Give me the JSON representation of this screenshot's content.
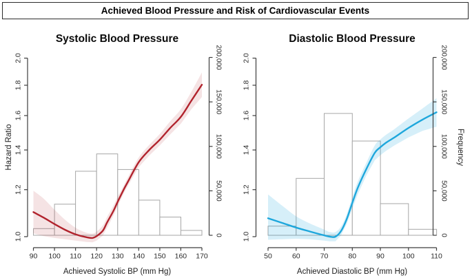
{
  "figure_title": "Achieved Blood Pressure and Risk of Cardiovascular Events",
  "colors": {
    "systolic_curve": "#B1232D",
    "systolic_band": "rgba(178,36,48,0.13)",
    "diastolic_curve": "#1EA7DC",
    "diastolic_band": "rgba(30,167,220,0.18)",
    "bar_fill": "#FFFFFF",
    "bar_stroke": "#A6A6A6",
    "axis": "#3C3C3C",
    "tick_text": "#2B2B2B"
  },
  "chart_data": [
    {
      "type": "line+histogram",
      "title": "Systolic Blood Pressure",
      "xlabel": "Achieved Systolic BP (mm Hg)",
      "ylabel_left": "Hazard Ratio",
      "ylabel_right": "",
      "grid": false,
      "legend": "none",
      "x_ticks": [
        90,
        100,
        110,
        120,
        130,
        140,
        150,
        160,
        170
      ],
      "xlim": [
        90,
        170
      ],
      "hr_axis": {
        "scale": "log",
        "lim": [
          1.0,
          2.0
        ],
        "tick_labels": [
          "1.0",
          "1.2",
          "1.4",
          "1.6",
          "1.8",
          "2.0"
        ]
      },
      "freq_axis": {
        "scale": "linear",
        "lim": [
          0,
          200000
        ],
        "tick_labels": [
          "0",
          "50,000",
          "100,000",
          "150,000",
          "200,000"
        ]
      },
      "histogram": {
        "bin_start": 90,
        "bin_width": 10,
        "frequencies": [
          7500,
          35000,
          72000,
          91500,
          74000,
          39500,
          20500,
          5500
        ]
      },
      "curve": {
        "color": "#B1232D",
        "band_color": "rgba(178,36,48,0.13)",
        "x": [
          90,
          95,
          100,
          105,
          110,
          115,
          118,
          120,
          123,
          125,
          128,
          130,
          133,
          135,
          140,
          145,
          150,
          155,
          160,
          165,
          170
        ],
        "hr": [
          1.1,
          1.076,
          1.05,
          1.027,
          1.009,
          0.998,
          0.995,
          1.002,
          1.024,
          1.057,
          1.105,
          1.145,
          1.203,
          1.24,
          1.335,
          1.4,
          1.457,
          1.526,
          1.592,
          1.695,
          1.804
        ],
        "band_lower": [
          1.013,
          1.002,
          0.995,
          0.99,
          0.985,
          0.98,
          0.978,
          0.985,
          1.005,
          1.035,
          1.085,
          1.125,
          1.185,
          1.22,
          1.31,
          1.37,
          1.425,
          1.488,
          1.55,
          1.64,
          1.72
        ],
        "band_upper": [
          1.195,
          1.158,
          1.11,
          1.068,
          1.035,
          1.016,
          1.012,
          1.02,
          1.045,
          1.08,
          1.128,
          1.168,
          1.222,
          1.262,
          1.36,
          1.428,
          1.49,
          1.566,
          1.64,
          1.755,
          1.892
        ]
      }
    },
    {
      "type": "line+histogram",
      "title": "Diastolic Blood Pressure",
      "xlabel": "Achieved Diastolic BP (mm Hg)",
      "ylabel_left": "",
      "ylabel_right": "Frequency",
      "grid": false,
      "legend": "none",
      "x_ticks": [
        50,
        60,
        70,
        80,
        90,
        100,
        110
      ],
      "xlim": [
        50,
        110
      ],
      "hr_axis": {
        "scale": "log",
        "lim": [
          1.0,
          2.0
        ],
        "tick_labels": [
          "1.0",
          "1.2",
          "1.4",
          "1.6",
          "1.8",
          "2.0"
        ]
      },
      "freq_axis": {
        "scale": "linear",
        "lim": [
          0,
          200000
        ],
        "tick_labels": [
          "0",
          "50,000",
          "100,000",
          "150,000",
          "200,000"
        ]
      },
      "histogram": {
        "bin_start": 50,
        "bin_width": 10,
        "frequencies": [
          10300,
          64000,
          137000,
          106000,
          35600,
          6700
        ]
      },
      "curve": {
        "color": "#1EA7DC",
        "band_color": "rgba(30,167,220,0.18)",
        "x": [
          50,
          55,
          60,
          65,
          70,
          72,
          74,
          76,
          78,
          80,
          82,
          85,
          88,
          90,
          92,
          95,
          100,
          105,
          110
        ],
        "hr": [
          1.074,
          1.055,
          1.036,
          1.02,
          1.005,
          1.0,
          1.0,
          1.022,
          1.07,
          1.14,
          1.21,
          1.3,
          1.385,
          1.415,
          1.44,
          1.47,
          1.525,
          1.575,
          1.621
        ],
        "band_lower": [
          0.988,
          0.99,
          0.992,
          0.99,
          0.985,
          0.982,
          0.982,
          1.005,
          1.05,
          1.115,
          1.18,
          1.268,
          1.345,
          1.372,
          1.395,
          1.425,
          1.47,
          1.508,
          1.532
        ],
        "band_upper": [
          1.178,
          1.128,
          1.082,
          1.052,
          1.028,
          1.018,
          1.018,
          1.04,
          1.09,
          1.165,
          1.24,
          1.332,
          1.425,
          1.458,
          1.485,
          1.518,
          1.582,
          1.645,
          1.712
        ]
      }
    }
  ]
}
